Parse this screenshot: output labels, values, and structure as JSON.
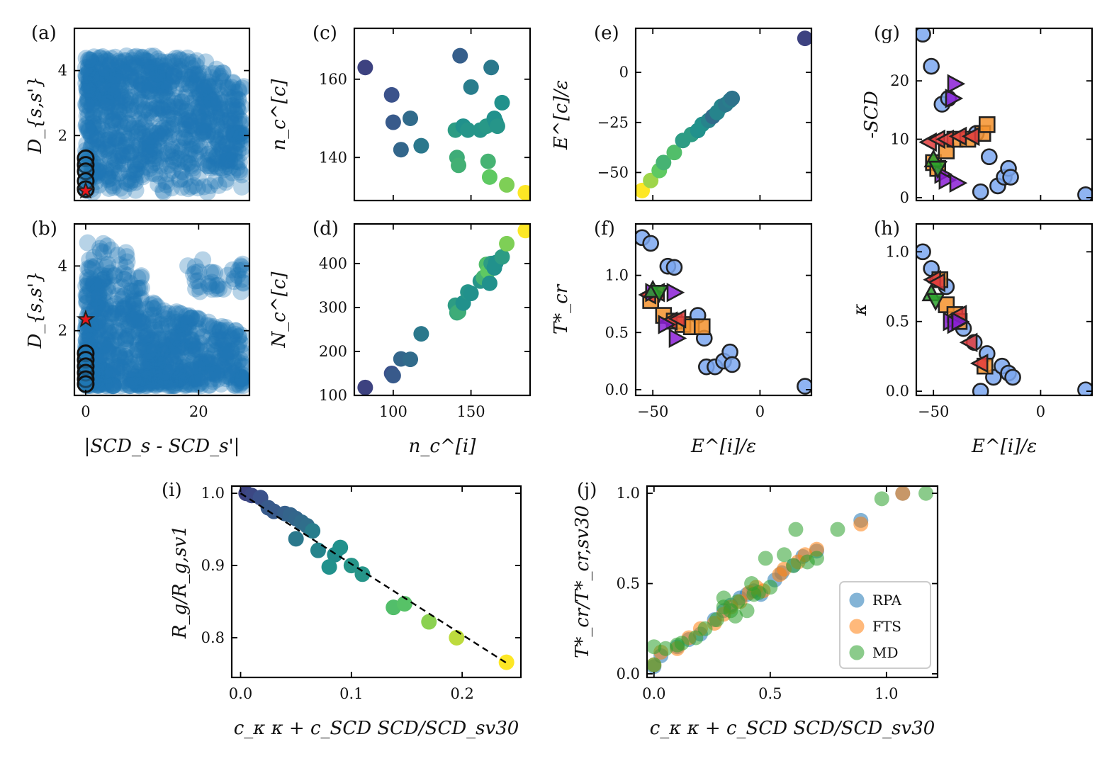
{
  "figure": {
    "palette": {
      "viridis": [
        "#440154",
        "#3b528b",
        "#21918c",
        "#5ec962",
        "#fde725"
      ],
      "scatter_blue": "#1f77b4",
      "light_blue": "#7ba7f0",
      "purple": "#8b1ed6",
      "orange": "#f5922d",
      "red": "#e03c3c",
      "green": "#2ca02c",
      "rpa": "#1f77b4",
      "fts": "#ff7f0e",
      "md": "#2ca02c"
    }
  },
  "chart_data": [
    {
      "id": "a",
      "tag": "(a)",
      "type": "scatter",
      "xlabel": "",
      "ylabel": "D_{s,s'}",
      "xlim": [
        -2,
        29
      ],
      "ylim": [
        0,
        5.3
      ],
      "xticks": [],
      "xtick_labels": [],
      "yticks": [
        2,
        4
      ],
      "ytick_labels": [
        "2",
        "4"
      ],
      "description_cloud": {
        "x_range": [
          0,
          28
        ],
        "y_range": [
          0.2,
          4.5
        ]
      },
      "highlight_circles": {
        "x": [
          0,
          0,
          0,
          0,
          0
        ],
        "y": [
          1.3,
          1.1,
          0.9,
          0.6,
          0.35
        ]
      },
      "star": {
        "x": 0,
        "y": 0.3
      }
    },
    {
      "id": "b",
      "tag": "(b)",
      "type": "scatter",
      "xlabel": "|SCD_s - SCD_s'|",
      "ylabel": "D_{s,s'}",
      "xlim": [
        -2,
        29
      ],
      "ylim": [
        0,
        5.3
      ],
      "xticks": [
        0,
        20
      ],
      "xtick_labels": [
        "0",
        "20"
      ],
      "yticks": [
        2,
        4
      ],
      "ytick_labels": [
        "2",
        "4"
      ],
      "description_cloud": {
        "x_range": [
          0,
          28
        ],
        "y_range": [
          0.2,
          4.9
        ]
      },
      "highlight_circles": {
        "x": [
          0,
          0,
          0,
          0,
          0,
          0
        ],
        "y": [
          1.3,
          1.1,
          0.9,
          0.7,
          0.5,
          0.35
        ]
      },
      "star": {
        "x": 0,
        "y": 2.35
      }
    },
    {
      "id": "c",
      "tag": "(c)",
      "type": "scatter",
      "xlabel": "",
      "ylabel": "n_c^[c]",
      "xlim": [
        75,
        188
      ],
      "ylim": [
        129,
        173
      ],
      "xticks": [
        100,
        150
      ],
      "xtick_labels": [
        "",
        ""
      ],
      "yticks": [
        140,
        160
      ],
      "ytick_labels": [
        "140",
        "160"
      ],
      "x": [
        82,
        99,
        100,
        105,
        111,
        118,
        140,
        141,
        142,
        143,
        145,
        148,
        150,
        156,
        160,
        161,
        162,
        163,
        165,
        166,
        167,
        170,
        173,
        185
      ],
      "y": [
        163,
        156,
        149,
        142,
        150,
        143,
        147,
        140,
        138,
        166,
        148,
        147,
        158,
        147,
        148,
        139,
        135,
        163,
        150,
        149,
        148,
        154,
        133,
        131
      ],
      "c": [
        0.2,
        0.25,
        0.28,
        0.33,
        0.35,
        0.4,
        0.55,
        0.62,
        0.64,
        0.3,
        0.5,
        0.52,
        0.42,
        0.52,
        0.53,
        0.65,
        0.75,
        0.4,
        0.5,
        0.5,
        0.52,
        0.5,
        0.8,
        1.0
      ]
    },
    {
      "id": "d",
      "tag": "(d)",
      "type": "scatter",
      "xlabel": "n_c^[i]",
      "ylabel": "N_c^[c]",
      "xlim": [
        75,
        188
      ],
      "ylim": [
        100,
        490
      ],
      "xticks": [
        100,
        150
      ],
      "xtick_labels": [
        "100",
        "150"
      ],
      "yticks": [
        100,
        200,
        300,
        400
      ],
      "ytick_labels": [
        "100",
        "200",
        "300",
        "400"
      ],
      "x": [
        82,
        99,
        100,
        105,
        111,
        118,
        140,
        141,
        142,
        145,
        148,
        150,
        156,
        158,
        160,
        161,
        162,
        163,
        165,
        166,
        170,
        173,
        185
      ],
      "y": [
        118,
        150,
        145,
        183,
        182,
        240,
        305,
        288,
        290,
        310,
        335,
        332,
        360,
        368,
        398,
        382,
        355,
        400,
        390,
        402,
        415,
        445,
        475
      ],
      "c": [
        0.2,
        0.25,
        0.28,
        0.33,
        0.35,
        0.4,
        0.55,
        0.6,
        0.62,
        0.5,
        0.52,
        0.5,
        0.52,
        0.65,
        0.7,
        0.75,
        0.5,
        0.55,
        0.5,
        0.5,
        0.55,
        0.8,
        1.0
      ]
    },
    {
      "id": "e",
      "tag": "(e)",
      "type": "scatter",
      "xlabel": "",
      "ylabel": "E^[c]/ε",
      "xlim": [
        -58,
        24
      ],
      "ylim": [
        -64,
        22
      ],
      "xticks": [
        -50,
        0
      ],
      "xtick_labels": [
        "",
        ""
      ],
      "yticks": [
        -50,
        -25,
        0
      ],
      "ytick_labels": [
        "−50",
        "−25",
        "0"
      ],
      "x": [
        -55,
        -51,
        -47,
        -45,
        -40,
        -36,
        -32,
        -29,
        -27,
        -24,
        -22,
        -20,
        -18,
        -16,
        -14,
        -13,
        21
      ],
      "y": [
        -59,
        -54,
        -49,
        -45,
        -40,
        -34,
        -31,
        -29,
        -26,
        -24,
        -22,
        -20,
        -17,
        -16,
        -14,
        -13,
        17
      ],
      "c": [
        1.0,
        0.85,
        0.75,
        0.65,
        0.7,
        0.55,
        0.55,
        0.5,
        0.5,
        0.45,
        0.35,
        0.45,
        0.45,
        0.4,
        0.42,
        0.38,
        0.2
      ]
    },
    {
      "id": "f",
      "tag": "(f)",
      "type": "scatter",
      "xlabel": "E^[i]/ε",
      "ylabel": "T*_cr",
      "xlim": [
        -58,
        24
      ],
      "ylim": [
        -0.05,
        1.45
      ],
      "xticks": [
        -50,
        0
      ],
      "xtick_labels": [
        "−50",
        "0"
      ],
      "yticks": [
        0,
        0.5,
        1.0
      ],
      "ytick_labels": [
        "0.0",
        "0.5",
        "1.0"
      ],
      "circles": {
        "x": [
          -55,
          -51,
          -43,
          -40,
          -29,
          -26,
          -25,
          -21,
          -17,
          -14,
          -13,
          21
        ],
        "y": [
          1.33,
          1.28,
          1.08,
          1.07,
          0.65,
          0.45,
          0.2,
          0.2,
          0.25,
          0.33,
          0.22,
          0.03
        ]
      },
      "squares": {
        "x": [
          -51,
          -45,
          -40,
          -36,
          -32,
          -27
        ],
        "y": [
          0.78,
          0.65,
          0.6,
          0.57,
          0.55,
          0.55
        ]
      },
      "tri_left": {
        "x": [
          -52,
          -48,
          -42,
          -38
        ],
        "y": [
          0.83,
          0.85,
          0.6,
          0.62
        ]
      },
      "tri_right": {
        "x": [
          -50,
          -44,
          -40,
          -39
        ],
        "y": [
          0.85,
          0.57,
          0.85,
          0.45
        ]
      },
      "tri_up": {
        "x": [
          -50
        ],
        "y": [
          0.87
        ]
      },
      "tri_down": {
        "x": [
          -47
        ],
        "y": [
          0.85
        ]
      }
    },
    {
      "id": "g",
      "tag": "(g)",
      "type": "scatter",
      "xlabel": "",
      "ylabel": "-SCD",
      "xlim": [
        -58,
        24
      ],
      "ylim": [
        -0.5,
        29
      ],
      "xticks": [
        -50,
        0
      ],
      "xtick_labels": [
        "",
        ""
      ],
      "yticks": [
        0,
        10,
        20
      ],
      "ytick_labels": [
        "0",
        "10",
        "20"
      ],
      "circles": {
        "x": [
          -55,
          -51,
          -46,
          -43,
          -30,
          -28,
          -24,
          -20,
          -17,
          -15,
          -14,
          21
        ],
        "y": [
          28,
          22.5,
          16,
          17,
          11,
          1,
          7,
          2,
          3.5,
          5,
          3.5,
          0.5
        ]
      },
      "squares": {
        "x": [
          -50,
          -48,
          -44,
          -40,
          -34,
          -27,
          -25
        ],
        "y": [
          6,
          5,
          8,
          10,
          10,
          11,
          12.5
        ]
      },
      "tri_left": {
        "x": [
          -52,
          -48,
          -44,
          -38,
          -32
        ],
        "y": [
          9.5,
          10,
          10,
          10.5,
          10.5
        ]
      },
      "tri_right": {
        "x": [
          -46,
          -44,
          -41,
          -40,
          -39
        ],
        "y": [
          4,
          3,
          17,
          19.5,
          2.5
        ]
      },
      "tri_up": {
        "x": [
          -50
        ],
        "y": [
          6.5
        ]
      },
      "tri_down": {
        "x": [
          -48
        ],
        "y": [
          5
        ]
      }
    },
    {
      "id": "h",
      "tag": "(h)",
      "type": "scatter",
      "xlabel": "E^[i]/ε",
      "ylabel": "κ",
      "xlim": [
        -58,
        24
      ],
      "ylim": [
        -0.03,
        1.2
      ],
      "xticks": [
        -50,
        0
      ],
      "xtick_labels": [
        "−50",
        "0"
      ],
      "yticks": [
        0,
        0.5,
        1.0
      ],
      "ytick_labels": [
        "0.0",
        "0.5",
        "1.0"
      ],
      "circles": {
        "x": [
          -55,
          -51,
          -48,
          -44,
          -36,
          -31,
          -28,
          -25,
          -22,
          -18,
          -15,
          -13,
          21
        ],
        "y": [
          1.0,
          0.88,
          0.8,
          0.75,
          0.45,
          0.35,
          0.0,
          0.27,
          0.1,
          0.18,
          0.13,
          0.1,
          0.01
        ]
      },
      "squares": {
        "x": [
          -47,
          -44,
          -40,
          -38,
          -26
        ],
        "y": [
          0.8,
          0.62,
          0.55,
          0.5,
          0.18
        ]
      },
      "tri_left": {
        "x": [
          -50,
          -48,
          -38,
          -33,
          -28
        ],
        "y": [
          0.8,
          0.78,
          0.55,
          0.35,
          0.2
        ]
      },
      "tri_right": {
        "x": [
          -42,
          -40,
          -38
        ],
        "y": [
          0.5,
          0.48,
          0.5
        ]
      },
      "tri_up": {
        "x": [
          -51
        ],
        "y": [
          0.7
        ]
      },
      "tri_down": {
        "x": [
          -49
        ],
        "y": [
          0.65
        ]
      }
    },
    {
      "id": "i",
      "tag": "(i)",
      "type": "scatter",
      "xlabel": "c_κ κ + c_SCD SCD/SCD_sv30",
      "ylabel": "R_g/R_g,sv1",
      "xlim": [
        -0.008,
        0.253
      ],
      "ylim": [
        0.745,
        1.01
      ],
      "xticks": [
        0.0,
        0.1,
        0.2
      ],
      "xtick_labels": [
        "0.0",
        "0.1",
        "0.2"
      ],
      "yticks": [
        0.8,
        0.9,
        1.0
      ],
      "ytick_labels": [
        "0.8",
        "0.9",
        "1.0"
      ],
      "x": [
        0.005,
        0.01,
        0.018,
        0.025,
        0.03,
        0.04,
        0.045,
        0.05,
        0.055,
        0.06,
        0.065,
        0.05,
        0.07,
        0.085,
        0.09,
        0.08,
        0.1,
        0.11,
        0.138,
        0.148,
        0.17,
        0.195,
        0.24
      ],
      "y": [
        1.0,
        0.997,
        0.994,
        0.98,
        0.975,
        0.972,
        0.97,
        0.965,
        0.96,
        0.955,
        0.948,
        0.937,
        0.921,
        0.915,
        0.925,
        0.898,
        0.9,
        0.888,
        0.842,
        0.847,
        0.822,
        0.8,
        0.766
      ],
      "c": [
        0.2,
        0.22,
        0.25,
        0.28,
        0.28,
        0.3,
        0.32,
        0.33,
        0.35,
        0.36,
        0.42,
        0.4,
        0.45,
        0.48,
        0.5,
        0.5,
        0.52,
        0.52,
        0.7,
        0.72,
        0.82,
        0.9,
        1.0
      ],
      "fit_line": {
        "x": [
          0.0,
          0.24
        ],
        "y": [
          1.0,
          0.765
        ]
      }
    },
    {
      "id": "j",
      "tag": "(j)",
      "type": "scatter",
      "xlabel": "c_κ κ + c_SCD SCD/SCD_sv30",
      "ylabel": "T*_cr/T*_cr,sv30",
      "xlim": [
        -0.03,
        1.22
      ],
      "ylim": [
        -0.02,
        1.04
      ],
      "xticks": [
        0.0,
        0.5,
        1.0
      ],
      "xtick_labels": [
        "0.0",
        "0.5",
        "1.0"
      ],
      "yticks": [
        0.0,
        0.5,
        1.0
      ],
      "ytick_labels": [
        "0.0",
        "0.5",
        "1.0"
      ],
      "legend": {
        "position": "lower-right",
        "entries": [
          "RPA",
          "FTS",
          "MD"
        ]
      },
      "series": [
        {
          "name": "RPA",
          "x": [
            0.0,
            0.03,
            0.1,
            0.15,
            0.2,
            0.26,
            0.3,
            0.33,
            0.37,
            0.4,
            0.43,
            0.46,
            0.52,
            0.55,
            0.6,
            0.64,
            0.7,
            0.89,
            1.07
          ],
          "y": [
            0.04,
            0.1,
            0.15,
            0.19,
            0.22,
            0.3,
            0.35,
            0.38,
            0.42,
            0.44,
            0.46,
            0.44,
            0.52,
            0.56,
            0.6,
            0.65,
            0.68,
            0.85,
            1.0
          ]
        },
        {
          "name": "FTS",
          "x": [
            0.0,
            0.03,
            0.1,
            0.15,
            0.2,
            0.26,
            0.3,
            0.33,
            0.37,
            0.41,
            0.44,
            0.47,
            0.54,
            0.56,
            0.62,
            0.65,
            0.7,
            0.89,
            1.07
          ],
          "y": [
            0.05,
            0.12,
            0.14,
            0.2,
            0.25,
            0.28,
            0.33,
            0.37,
            0.4,
            0.45,
            0.48,
            0.46,
            0.55,
            0.58,
            0.62,
            0.66,
            0.69,
            0.83,
            1.0
          ]
        },
        {
          "name": "MD",
          "x": [
            0.0,
            0.0,
            0.05,
            0.1,
            0.12,
            0.18,
            0.22,
            0.27,
            0.3,
            0.33,
            0.36,
            0.4,
            0.42,
            0.45,
            0.48,
            0.5,
            0.56,
            0.6,
            0.61,
            0.66,
            0.7,
            0.79,
            0.98,
            1.17,
            0.35,
            0.43,
            0.3
          ],
          "y": [
            0.05,
            0.15,
            0.14,
            0.16,
            0.17,
            0.2,
            0.25,
            0.3,
            0.37,
            0.35,
            0.4,
            0.35,
            0.5,
            0.45,
            0.64,
            0.48,
            0.66,
            0.6,
            0.8,
            0.62,
            0.64,
            0.8,
            0.97,
            1.0,
            0.32,
            0.44,
            0.42
          ]
        }
      ]
    }
  ]
}
